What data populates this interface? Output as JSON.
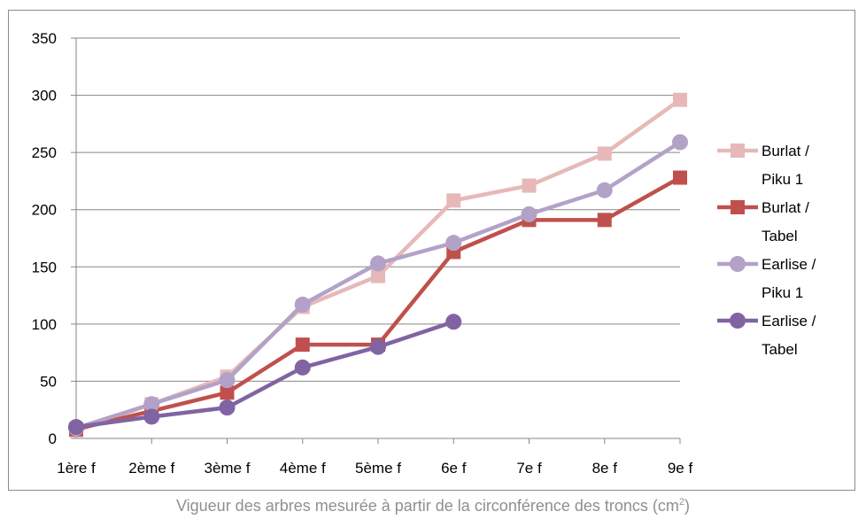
{
  "chart_data": {
    "type": "line",
    "title": "",
    "xlabel": "",
    "ylabel": "",
    "categories": [
      "1ère f",
      "2ème f",
      "3ème f",
      "4ème f",
      "5ème f",
      "6e f",
      "7e f",
      "8e f",
      "9e f"
    ],
    "ylim": [
      0,
      350
    ],
    "yticks": [
      0,
      50,
      100,
      150,
      200,
      250,
      300,
      350
    ],
    "grid": "horizontal",
    "legend": "right",
    "series": [
      {
        "name": "Burlat / Piku 1",
        "legend_lines": [
          "Burlat /",
          "Piku 1"
        ],
        "marker": "square",
        "color": "#e6b9b8",
        "values": [
          7,
          30,
          54,
          115,
          142,
          208,
          221,
          249,
          296
        ]
      },
      {
        "name": "Burlat / Tabel",
        "legend_lines": [
          "Burlat /",
          "Tabel"
        ],
        "marker": "square",
        "color": "#c0504d",
        "values": [
          8,
          24,
          40,
          82,
          82,
          163,
          191,
          191,
          228
        ]
      },
      {
        "name": "Earlise / Piku 1",
        "legend_lines": [
          "Earlise /",
          "Piku 1"
        ],
        "marker": "circle",
        "color": "#b3a2c7",
        "values": [
          9,
          30,
          51,
          117,
          153,
          171,
          196,
          217,
          259
        ]
      },
      {
        "name": "Earlise / Tabel",
        "legend_lines": [
          "Earlise /",
          "Tabel"
        ],
        "marker": "circle",
        "color": "#8064a2",
        "values": [
          10,
          19,
          27,
          62,
          80,
          102,
          null,
          null,
          null
        ]
      }
    ]
  },
  "caption": {
    "text": "Vigueur des arbres mesurée à partir de la circonférence des troncs (cm",
    "superscript": "2",
    "closing": ")"
  }
}
